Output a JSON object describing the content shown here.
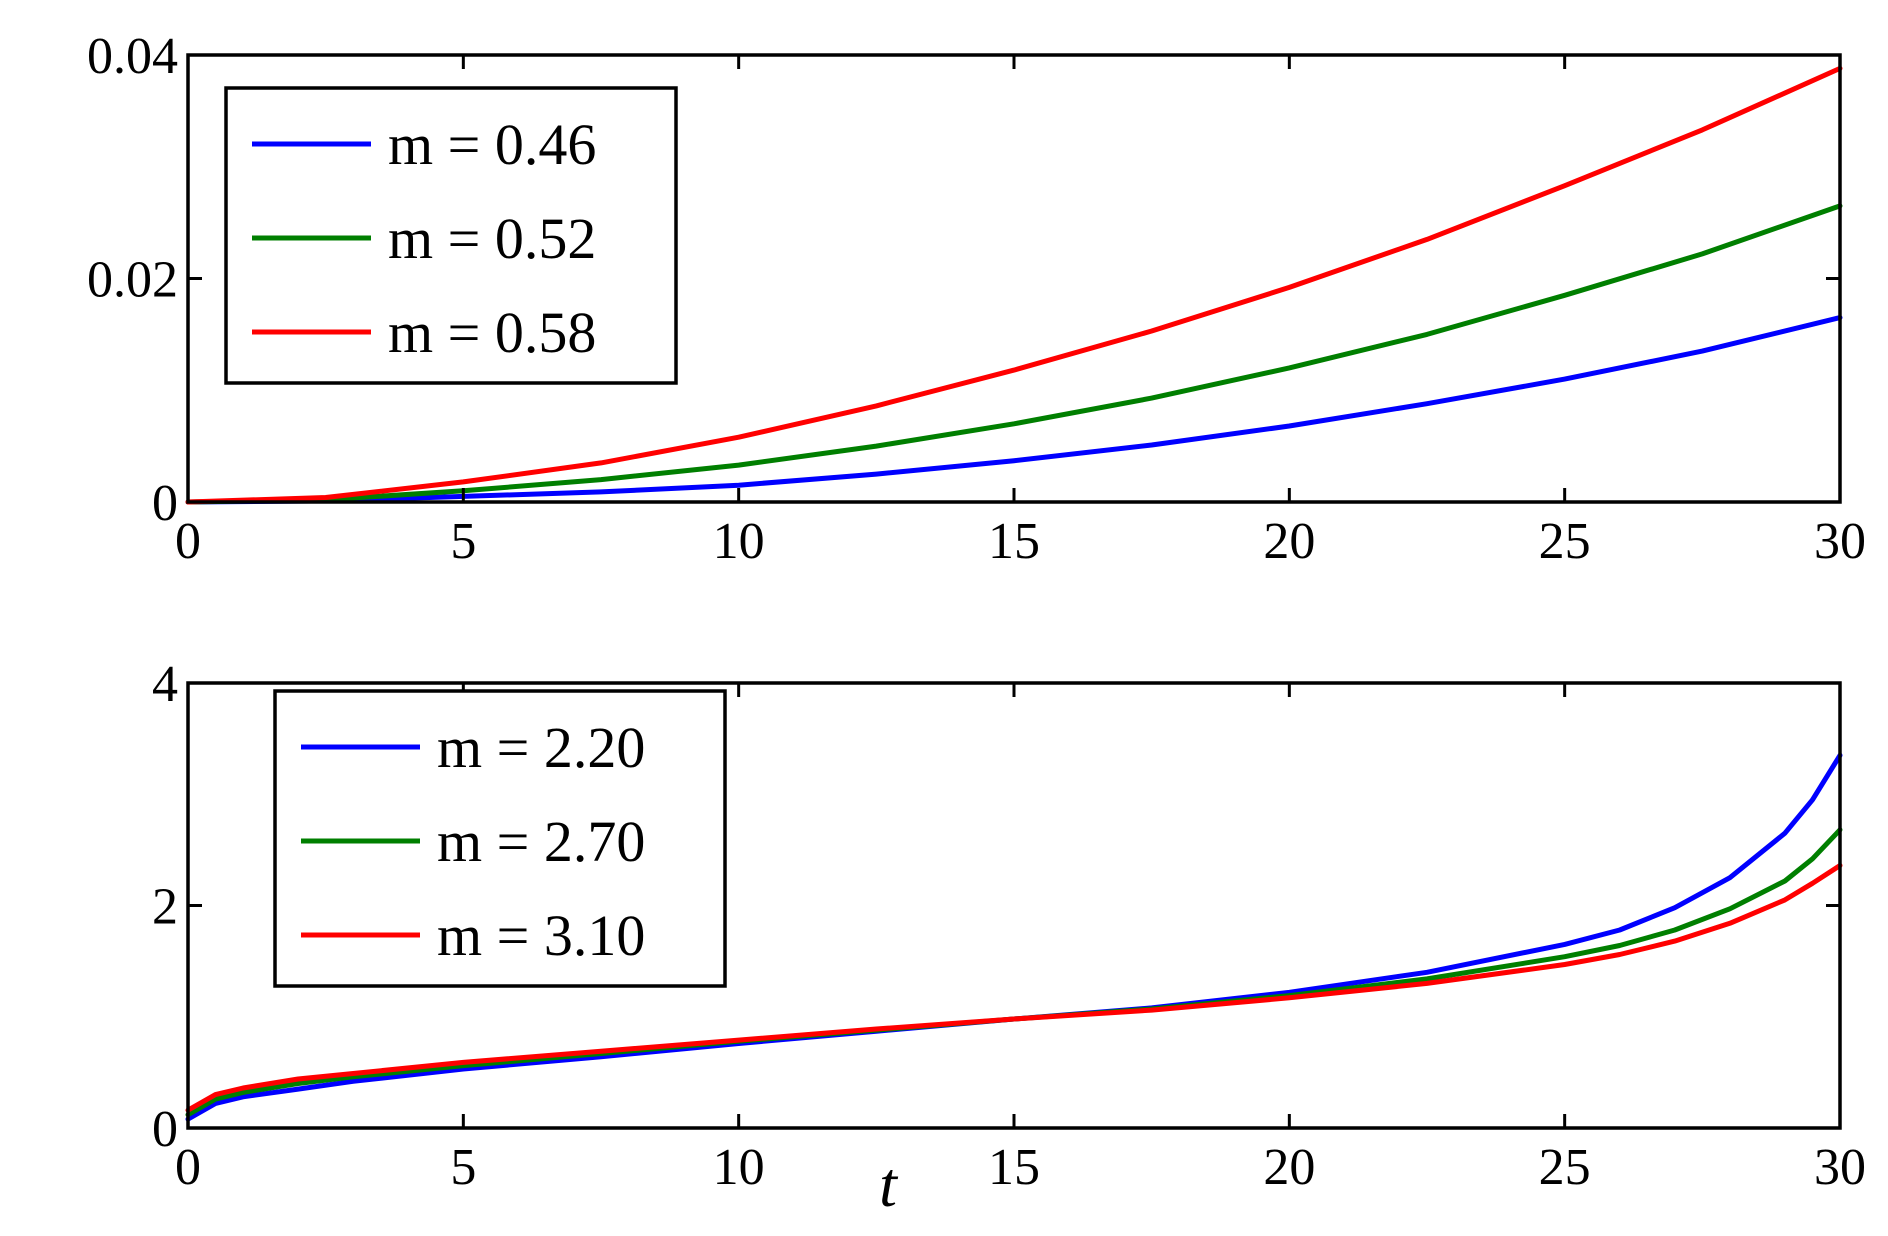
{
  "chart_data": [
    {
      "type": "line",
      "title": "",
      "xlabel": "",
      "ylabel": "",
      "xlim": [
        0,
        30
      ],
      "ylim": [
        0,
        0.04
      ],
      "xticks": [
        0,
        5,
        10,
        15,
        20,
        25,
        30
      ],
      "xtick_labels": [
        "0",
        "5",
        "10",
        "15",
        "20",
        "25",
        "30"
      ],
      "yticks": [
        0,
        0.02,
        0.04
      ],
      "ytick_labels": [
        "0",
        "0.02",
        "0.04"
      ],
      "grid": false,
      "legend_position": "top-left",
      "x": [
        0,
        2.5,
        5,
        7.5,
        10,
        12.5,
        15,
        17.5,
        20,
        22.5,
        25,
        27.5,
        30
      ],
      "series": [
        {
          "name": "m = 0.46",
          "color": "#0000ff",
          "values": [
            0,
            0.0001,
            0.0005,
            0.0009,
            0.0015,
            0.0025,
            0.0037,
            0.0051,
            0.0068,
            0.0088,
            0.011,
            0.0135,
            0.0165
          ]
        },
        {
          "name": "m = 0.52",
          "color": "#007f00",
          "values": [
            0,
            0.0002,
            0.001,
            0.002,
            0.0033,
            0.005,
            0.007,
            0.0093,
            0.012,
            0.015,
            0.0185,
            0.0222,
            0.0265
          ]
        },
        {
          "name": "m = 0.58",
          "color": "#ff0000",
          "values": [
            0,
            0.0004,
            0.0018,
            0.0035,
            0.0058,
            0.0086,
            0.0118,
            0.0153,
            0.0192,
            0.0235,
            0.0283,
            0.0333,
            0.0388
          ]
        }
      ]
    },
    {
      "type": "line",
      "title": "",
      "xlabel": "t",
      "ylabel": "",
      "xlim": [
        0,
        30
      ],
      "ylim": [
        0,
        4
      ],
      "xticks": [
        0,
        5,
        10,
        15,
        20,
        25,
        30
      ],
      "xtick_labels": [
        "0",
        "5",
        "10",
        "15",
        "20",
        "25",
        "30"
      ],
      "yticks": [
        0,
        2,
        4
      ],
      "ytick_labels": [
        "0",
        "2",
        "4"
      ],
      "grid": false,
      "legend_position": "top-left",
      "x": [
        0,
        0.5,
        1,
        2,
        3,
        5,
        7.5,
        10,
        12.5,
        15,
        17.5,
        20,
        22.5,
        25,
        26,
        27,
        28,
        29,
        29.5,
        30
      ],
      "series": [
        {
          "name": "m = 2.20",
          "color": "#0000ff",
          "values": [
            0.08,
            0.22,
            0.28,
            0.35,
            0.42,
            0.53,
            0.64,
            0.76,
            0.87,
            0.98,
            1.08,
            1.22,
            1.4,
            1.65,
            1.78,
            1.98,
            2.25,
            2.65,
            2.95,
            3.35
          ]
        },
        {
          "name": "m = 2.70",
          "color": "#007f00",
          "values": [
            0.12,
            0.26,
            0.32,
            0.4,
            0.46,
            0.56,
            0.67,
            0.78,
            0.88,
            0.98,
            1.07,
            1.19,
            1.34,
            1.54,
            1.64,
            1.78,
            1.97,
            2.22,
            2.42,
            2.68
          ]
        },
        {
          "name": "m = 3.10",
          "color": "#ff0000",
          "values": [
            0.16,
            0.3,
            0.36,
            0.44,
            0.49,
            0.59,
            0.69,
            0.79,
            0.89,
            0.98,
            1.06,
            1.17,
            1.3,
            1.47,
            1.56,
            1.68,
            1.84,
            2.05,
            2.2,
            2.36
          ]
        }
      ]
    }
  ]
}
